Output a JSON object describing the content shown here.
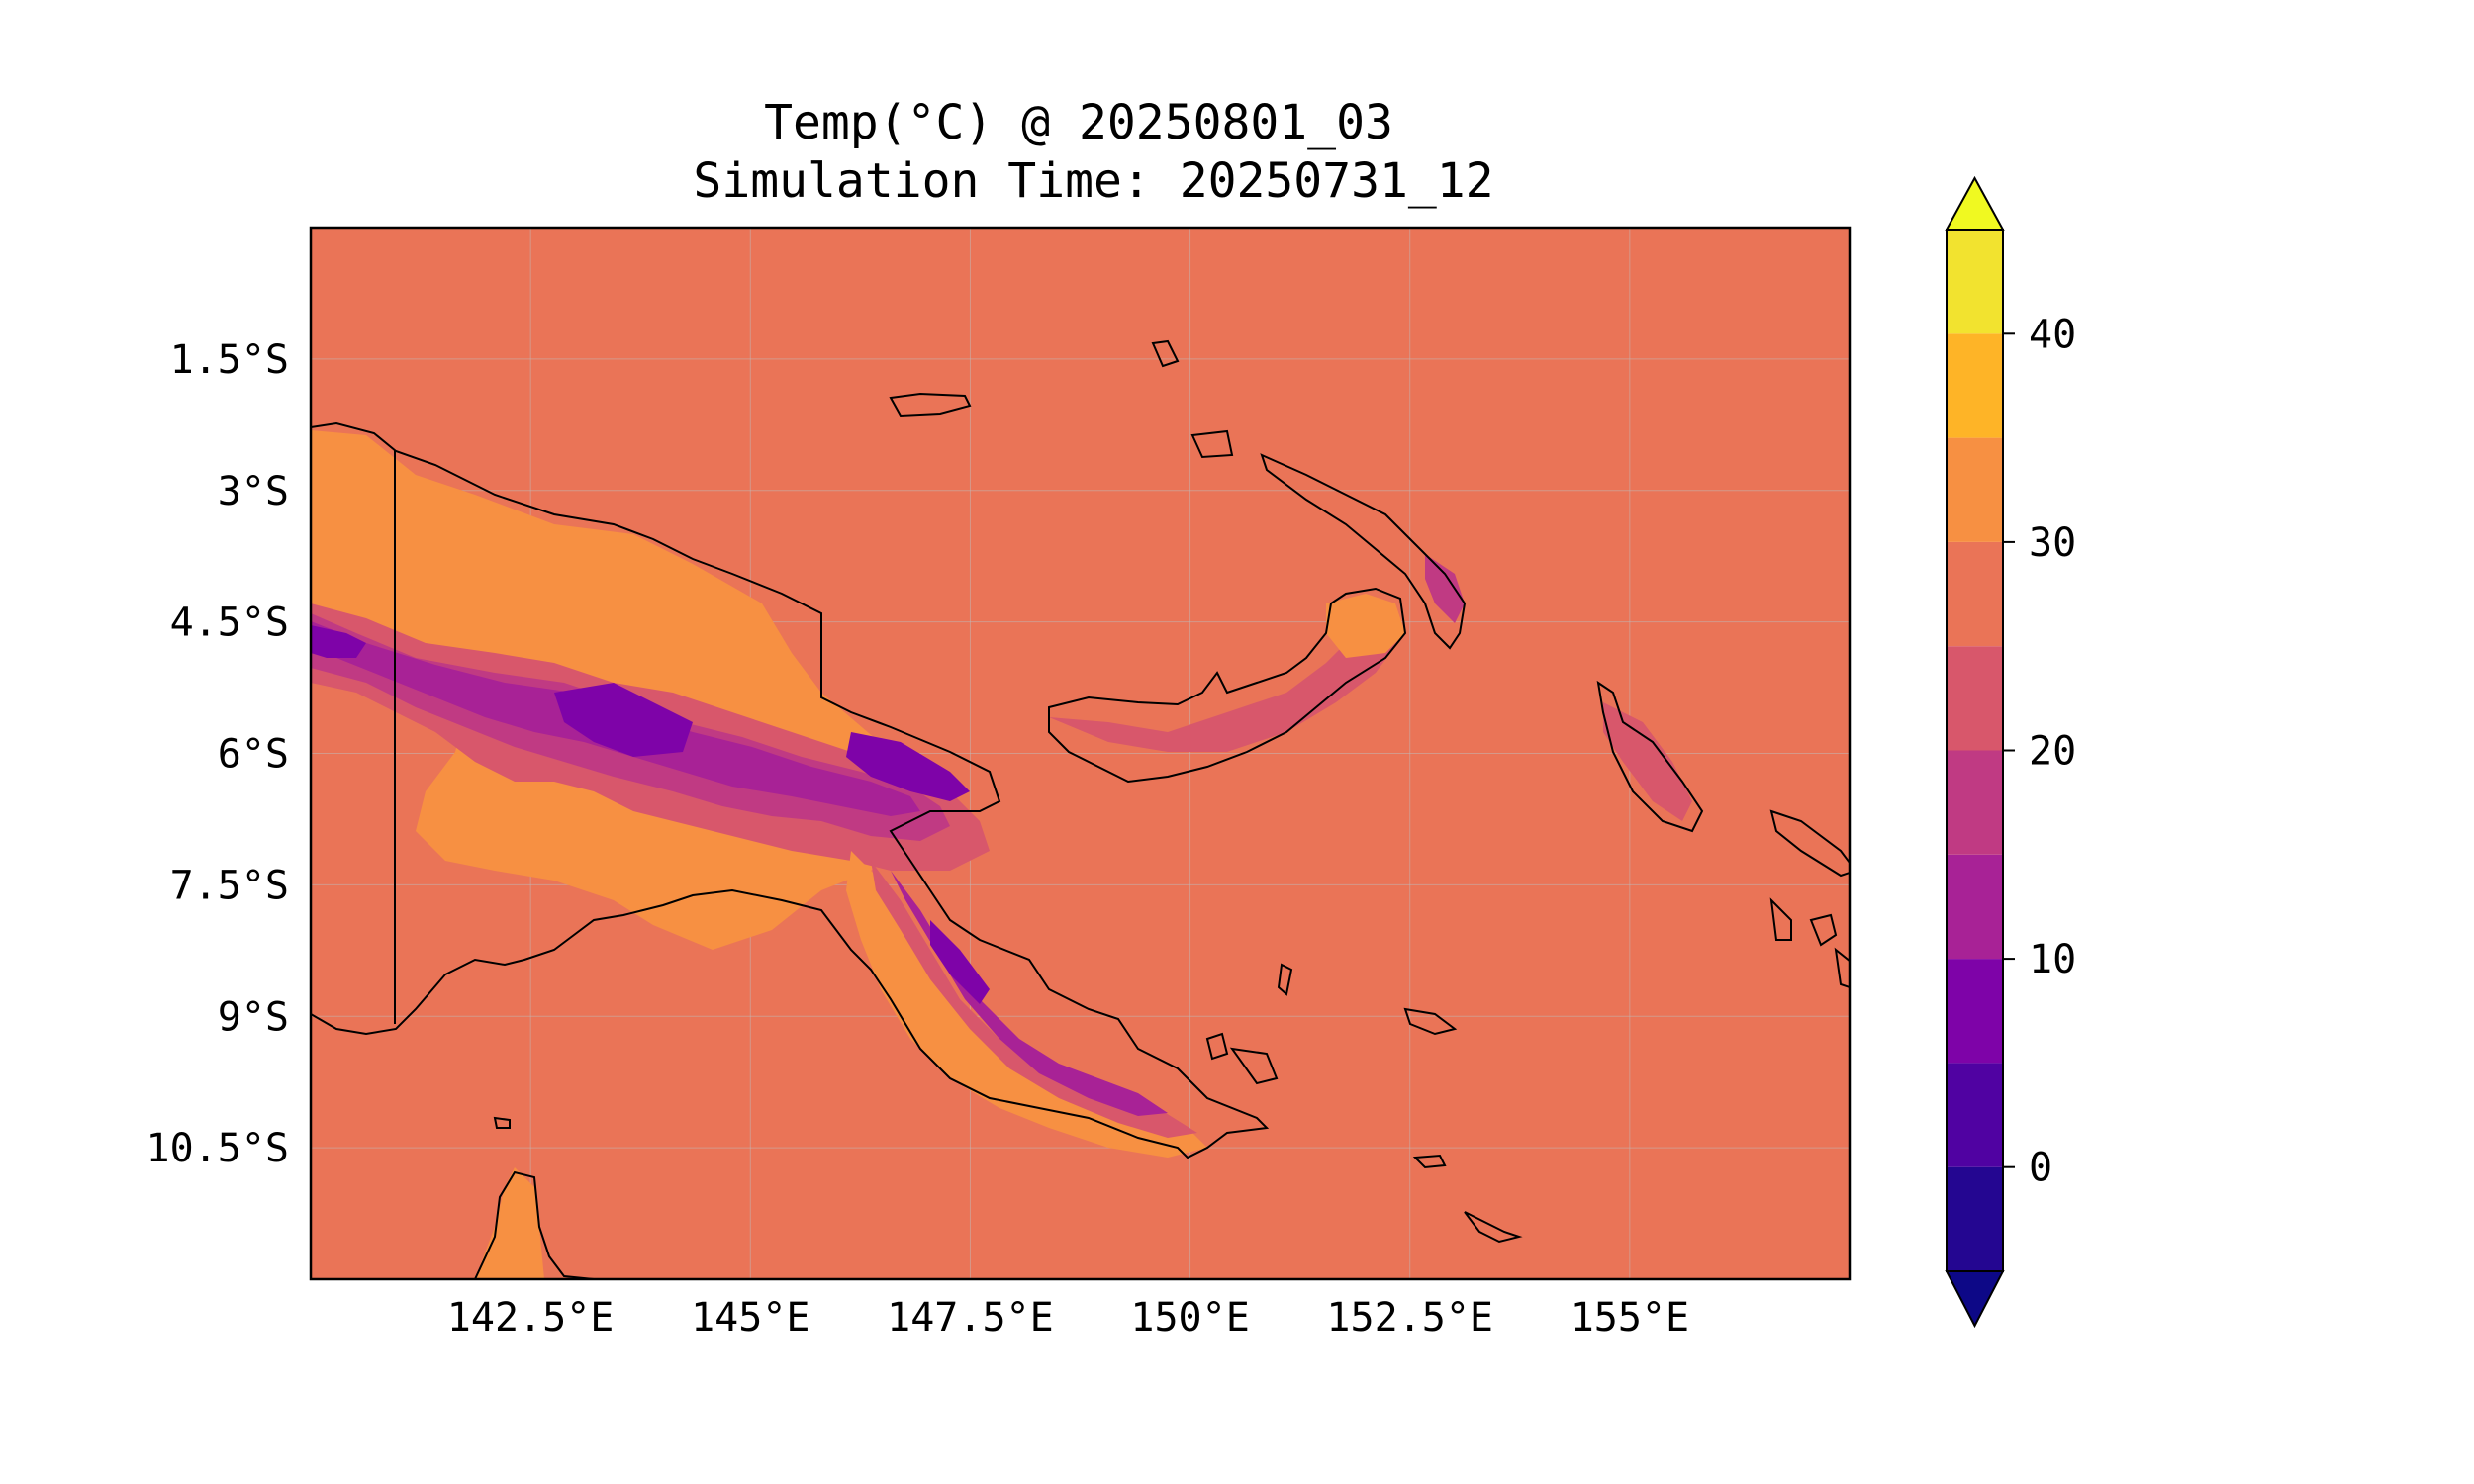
{
  "title": {
    "line1": "Temp(°C) @ 20250801_03",
    "line2": "Simulation Time: 20250731_12"
  },
  "map": {
    "projection": "PlateCarree",
    "lon_range": [
      140,
      157.5
    ],
    "lat_range": [
      0,
      -12
    ],
    "lon_ticks": [
      {
        "value": 142.5,
        "label": "142.5°E"
      },
      {
        "value": 145,
        "label": "145°E"
      },
      {
        "value": 147.5,
        "label": "147.5°E"
      },
      {
        "value": 150,
        "label": "150°E"
      },
      {
        "value": 152.5,
        "label": "152.5°E"
      },
      {
        "value": 155,
        "label": "155°E"
      }
    ],
    "lat_ticks": [
      {
        "value": -1.5,
        "label": "1.5°S"
      },
      {
        "value": -3,
        "label": "3°S"
      },
      {
        "value": -4.5,
        "label": "4.5°S"
      },
      {
        "value": -6,
        "label": "6°S"
      },
      {
        "value": -7.5,
        "label": "7.5°S"
      },
      {
        "value": -9,
        "label": "9°S"
      },
      {
        "value": -10.5,
        "label": "10.5°S"
      }
    ],
    "gridlines": true,
    "background_value_c": 27.5,
    "coastline_color": "#000000"
  },
  "colorbar": {
    "levels": [
      -5,
      0,
      5,
      10,
      15,
      20,
      25,
      30,
      35,
      40,
      45
    ],
    "colors": [
      "#240691",
      "#5002a2",
      "#7e03a8",
      "#a82296",
      "#c03a83",
      "#d8576b",
      "#ea7457",
      "#f79042",
      "#feb427",
      "#f2e32f"
    ],
    "under_color": "#0d0887",
    "over_color": "#f0f921",
    "extend": "both",
    "ticks": [
      {
        "value": 0,
        "label": "0"
      },
      {
        "value": 10,
        "label": "10"
      },
      {
        "value": 20,
        "label": "20"
      },
      {
        "value": 30,
        "label": "30"
      },
      {
        "value": 40,
        "label": "40"
      }
    ]
  }
}
